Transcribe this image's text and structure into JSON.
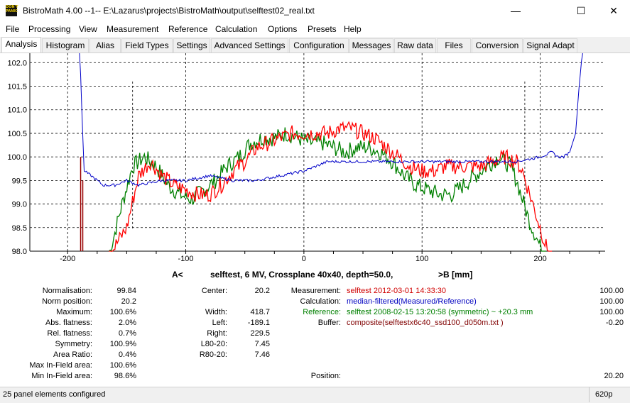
{
  "window": {
    "title": "BistroMath 4.00 --1-- E:\\Lazarus\\projects\\BistroMath\\output\\selftest02_real.txt",
    "icon_text": [
      "DON'T",
      "PANIC"
    ],
    "minimize": "—",
    "maximize": "☐",
    "close": "✕"
  },
  "menu": [
    "File",
    "Processing",
    "View",
    "Measurement",
    "Reference",
    "Calculation",
    "Options",
    "Presets",
    "Help"
  ],
  "tabs": [
    "Analysis",
    "Histogram",
    "Alias",
    "Field Types",
    "Settings",
    "Advanced Settings",
    "Configuration",
    "Messages",
    "Raw data",
    "Files",
    "Conversion",
    "Signal Adapt"
  ],
  "active_tab": "Analysis",
  "colors": {
    "measured": "#ff0000",
    "reference": "#008000",
    "calculated": "#0000c8",
    "marker": "#990000",
    "grid": "#000000"
  },
  "chart_data": {
    "type": "line",
    "xlabel_left": "A<",
    "title": "selftest, 6 MV, Crossplane 40x40, depth=50.0,",
    "xlabel_right": ">B  [mm]",
    "xlim": [
      -232,
      255
    ],
    "ylim": [
      98.0,
      102.2
    ],
    "x_ticks": [
      "-200",
      "-100",
      "0",
      "100",
      "200"
    ],
    "y_ticks": [
      "102.0",
      "101.5",
      "101.0",
      "100.5",
      "100.0",
      "99.5",
      "99.0",
      "98.5",
      "98.0"
    ],
    "grid": true,
    "field_edge_markers_x": [
      -145,
      187
    ],
    "left_marker_x": -189,
    "series": [
      {
        "x": [
          -165,
          -150,
          -140,
          -130,
          -120,
          -110,
          -100,
          -90,
          -80,
          -70,
          -60,
          -50,
          -40,
          -30,
          -20,
          -10,
          0,
          10,
          20,
          30,
          40,
          50,
          60,
          70,
          80,
          90,
          100,
          110,
          120,
          130,
          140,
          150,
          160,
          170,
          180,
          185,
          190,
          195,
          200,
          205,
          210
        ],
        "values": [
          97.9,
          98.5,
          99.6,
          99.9,
          99.6,
          99.4,
          99.3,
          99.2,
          99.2,
          99.4,
          99.7,
          99.9,
          100.2,
          100.3,
          100.4,
          100.5,
          100.5,
          100.5,
          100.5,
          100.6,
          100.6,
          100.5,
          100.4,
          100.2,
          100.0,
          99.8,
          99.7,
          99.7,
          99.8,
          99.8,
          99.8,
          99.8,
          99.9,
          100.0,
          99.9,
          99.7,
          99.3,
          98.9,
          98.5,
          98.1,
          97.8
        ]
      },
      {
        "x": [
          -165,
          -155,
          -145,
          -135,
          -125,
          -115,
          -105,
          -95,
          -85,
          -75,
          -65,
          -55,
          -45,
          -35,
          -25,
          -15,
          -5,
          5,
          15,
          25,
          35,
          45,
          55,
          65,
          75,
          85,
          95,
          105,
          115,
          125,
          135,
          145,
          155,
          165,
          175,
          180,
          185,
          190,
          195,
          200,
          205
        ],
        "values": [
          97.9,
          98.9,
          99.8,
          100.0,
          99.8,
          99.4,
          99.2,
          99.1,
          99.3,
          99.5,
          99.8,
          100.0,
          100.3,
          100.4,
          100.4,
          100.5,
          100.4,
          100.3,
          100.3,
          100.2,
          100.1,
          100.2,
          100.2,
          100.1,
          99.9,
          99.6,
          99.4,
          99.3,
          99.2,
          99.2,
          99.4,
          99.6,
          99.8,
          100.0,
          99.8,
          99.5,
          99.1,
          98.7,
          98.4,
          98.1,
          97.8
        ]
      },
      {
        "x": [
          -190,
          -188,
          -186,
          -180,
          -170,
          -160,
          -150,
          -140,
          -120,
          -100,
          -80,
          -60,
          -40,
          -20,
          0,
          10,
          20,
          40,
          60,
          80,
          100,
          120,
          140,
          160,
          180,
          200,
          210,
          215,
          220,
          225,
          230,
          233,
          236
        ],
        "values": [
          102.5,
          101.0,
          99.7,
          99.6,
          99.4,
          99.4,
          99.5,
          99.4,
          99.5,
          99.5,
          99.6,
          99.5,
          99.5,
          99.6,
          99.7,
          99.8,
          99.9,
          99.9,
          99.9,
          99.9,
          99.9,
          99.9,
          99.9,
          99.9,
          99.9,
          100.0,
          100.1,
          100.0,
          100.0,
          100.1,
          100.5,
          101.5,
          102.3
        ]
      }
    ]
  },
  "results": {
    "left": [
      {
        "label": "Normalisation:",
        "value": "99.84"
      },
      {
        "label": "Norm position:",
        "value": "20.2"
      },
      {
        "label": "Maximum:",
        "value": "100.6%"
      },
      {
        "label": "Abs. flatness:",
        "value": "2.0%"
      },
      {
        "label": "Rel. flatness:",
        "value": "0.7%"
      },
      {
        "label": "Symmetry:",
        "value": "100.9%"
      },
      {
        "label": "Area Ratio:",
        "value": "0.4%"
      },
      {
        "label": "Max In-Field area:",
        "value": "100.6%"
      },
      {
        "label": "Min In-Field area:",
        "value": "98.6%"
      }
    ],
    "center_label": "Center:",
    "center_value": "20.2",
    "middle": [
      {
        "label": "Width:",
        "value": "418.7"
      },
      {
        "label": "Left:",
        "value": "-189.1"
      },
      {
        "label": "Right:",
        "value": "229.5"
      },
      {
        "label": "L80-20:",
        "value": "7.45"
      },
      {
        "label": "R80-20:",
        "value": "7.46"
      }
    ],
    "right": [
      {
        "label": "Measurement:",
        "text": "selftest 2012-03-01 14:33:30",
        "value": "100.00",
        "color": "#d00000"
      },
      {
        "label": "Calculation:",
        "text": "median-filtered(Measured/Reference)",
        "value": "100.00",
        "color": "#0000c0"
      },
      {
        "label": "Reference:",
        "text": "selftest 2008-02-15 13:20:58 (symmetric) ~ +20.3 mm",
        "value": "100.00",
        "color": "#008000"
      },
      {
        "label": "Buffer:",
        "text": "composite(selftestx6c40_ssd100_d050m.txt )",
        "value": "-0.20",
        "color": "#800000"
      }
    ],
    "position_label": "Position:",
    "position_value": "20.20"
  },
  "status": {
    "left": "25 panel elements configured",
    "right": "620p"
  }
}
